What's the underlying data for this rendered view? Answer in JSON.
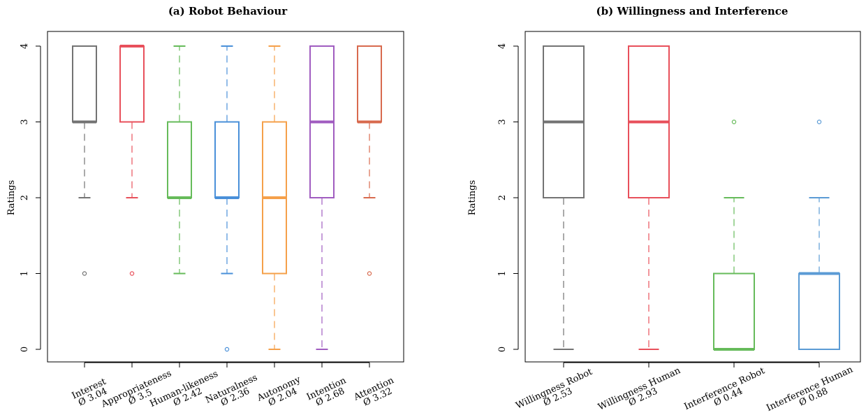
{
  "chart_data": [
    {
      "type": "boxplot",
      "title": "(a) Robot Behaviour",
      "ylabel": "Ratings",
      "xlabel": "",
      "ylim": [
        0,
        4
      ],
      "yticks": [
        0,
        1,
        2,
        3,
        4
      ],
      "grid": false,
      "categories": [
        {
          "name": "Interest",
          "mean_label": "Ø 3.04",
          "color": "#737373",
          "min": 2,
          "q1": 3,
          "median": 3,
          "q3": 4,
          "max": 4,
          "outliers": [
            1
          ]
        },
        {
          "name": "Appropriateness",
          "mean_label": "Ø 3.5",
          "color": "#e8505b",
          "min": 2,
          "q1": 3,
          "median": 4,
          "q3": 4,
          "max": 4,
          "outliers": [
            1
          ]
        },
        {
          "name": "Human-likeness",
          "mean_label": "Ø 2.42",
          "color": "#66bb5a",
          "min": 1,
          "q1": 2,
          "median": 2,
          "q3": 3,
          "max": 4,
          "outliers": []
        },
        {
          "name": "Naturalness",
          "mean_label": "Ø 2.36",
          "color": "#4a90d9",
          "min": 1,
          "q1": 2,
          "median": 2,
          "q3": 3,
          "max": 4,
          "outliers": [
            0
          ]
        },
        {
          "name": "Autonomy",
          "mean_label": "Ø 2.04",
          "color": "#f5a04a",
          "min": 0,
          "q1": 1,
          "median": 2,
          "q3": 3,
          "max": 4,
          "outliers": []
        },
        {
          "name": "Intention",
          "mean_label": "Ø 2.68",
          "color": "#a05cc0",
          "min": 0,
          "q1": 2,
          "median": 3,
          "q3": 4,
          "max": 4,
          "outliers": []
        },
        {
          "name": "Attention",
          "mean_label": "Ø 3.32",
          "color": "#d86a4e",
          "min": 2,
          "q1": 3,
          "median": 3,
          "q3": 4,
          "max": 4,
          "outliers": [
            1
          ]
        }
      ]
    },
    {
      "type": "boxplot",
      "title": "(b) Willingness and Interference",
      "ylabel": "Ratings",
      "xlabel": "",
      "ylim": [
        0,
        4
      ],
      "yticks": [
        0,
        1,
        2,
        3,
        4
      ],
      "grid": false,
      "categories": [
        {
          "name": "Willingness Robot",
          "mean_label": "Ø 2.53",
          "color": "#737373",
          "min": 0,
          "q1": 2,
          "median": 3,
          "q3": 4,
          "max": 4,
          "outliers": []
        },
        {
          "name": "Willingness Human",
          "mean_label": "Ø 2.93",
          "color": "#e8505b",
          "min": 0,
          "q1": 2,
          "median": 3,
          "q3": 4,
          "max": 4,
          "outliers": []
        },
        {
          "name": "Interference Robot",
          "mean_label": "Ø 0.44",
          "color": "#66bb5a",
          "min": 0,
          "q1": 0,
          "median": 0,
          "q3": 1,
          "max": 2,
          "outliers": [
            3
          ]
        },
        {
          "name": "Interference Human",
          "mean_label": "Ø 0.88",
          "color": "#5b9bd5",
          "min": 0,
          "q1": 0,
          "median": 1,
          "q3": 1,
          "max": 2,
          "outliers": [
            3
          ]
        }
      ]
    }
  ]
}
